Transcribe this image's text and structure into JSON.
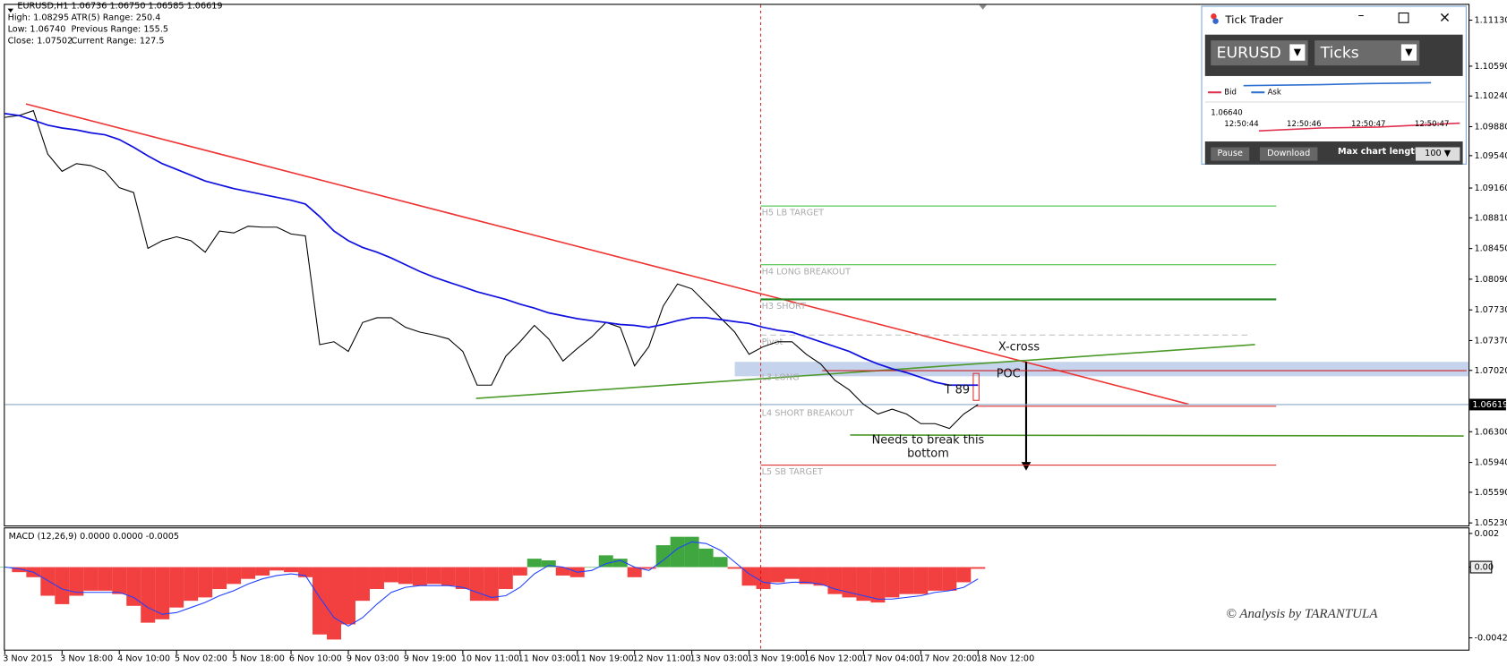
{
  "info": [
    "EURUSD,H1  1.06736 1.06750 1.06585 1.06619",
    "High: 1.08295",
    "ATR(5) Range: 250.4",
    "Low: 1.06740",
    "Previous Range: 155.5",
    "Close: 1.07502",
    "Current Range: 127.5"
  ],
  "tick_trader": {
    "title": "Tick Trader",
    "symbol": "EURUSD",
    "mode": "Ticks",
    "legend": [
      "Bid",
      "Ask"
    ],
    "price": "1.06640",
    "times": [
      "12:50:44",
      "12:50:46",
      "12:50:47",
      "12:50:47"
    ],
    "buttons": [
      "Pause",
      "Download"
    ],
    "length_label": "Max chart length:",
    "length": "100"
  },
  "chart_data": [
    {
      "type": "line",
      "categories": [
        "3 Nov 2015",
        null,
        null,
        null,
        "3 Nov 18:00",
        null,
        null,
        null,
        "4 Nov 10:00",
        null,
        null,
        null,
        "5 Nov 02:00",
        null,
        null,
        null,
        "5 Nov 18:00",
        null,
        null,
        null,
        "6 Nov 10:00",
        null,
        null,
        null,
        "9 Nov 03:00",
        null,
        null,
        null,
        "9 Nov 19:00",
        null,
        null,
        null,
        "10 Nov 11:00",
        null,
        null,
        null,
        "11 Nov 03:00",
        null,
        null,
        null,
        "11 Nov 19:00",
        null,
        null,
        null,
        "12 Nov 11:00",
        null,
        null,
        null,
        "13 Nov 03:00",
        null,
        null,
        null,
        "13 Nov 19:00",
        null,
        null,
        null,
        "16 Nov 12:00",
        null,
        null,
        null,
        "17 Nov 04:00",
        null,
        null,
        null,
        "17 Nov 20:00",
        null,
        null,
        null,
        "18 Nov 12:00"
      ],
      "series": [
        {
          "color": "#000000",
          "values": [
            1.09989,
            1.10011,
            1.10068,
            1.09559,
            1.09356,
            1.09446,
            1.09424,
            1.09356,
            1.09164,
            1.09107,
            1.08452,
            1.08542,
            1.08588,
            1.08542,
            1.08407,
            1.08655,
            1.08633,
            1.08712,
            1.08701,
            1.08701,
            1.08621,
            1.08599,
            1.07322,
            1.07356,
            1.07243,
            1.07582,
            1.07638,
            1.07638,
            1.07525,
            1.07469,
            1.07435,
            1.0739,
            1.07243,
            1.06847,
            1.06847,
            1.07186,
            1.07356,
            1.07548,
            1.0739,
            1.0713,
            1.07277,
            1.07412,
            1.07582,
            1.07525,
            1.07073,
            1.07299,
            1.07774,
            1.08034,
            1.07977,
            1.07808,
            1.07638,
            1.07469,
            1.07209,
            1.07299,
            1.07356,
            1.07356,
            1.07209,
            1.07096,
            1.06904,
            1.06791,
            1.06621,
            1.06508,
            1.06565,
            1.06508,
            1.06395,
            1.06395,
            1.06339,
            1.06508,
            1.06619
          ]
        },
        {
          "color": "#1010e0",
          "values": [
            1.10034,
            1.10011,
            1.09955,
            1.09898,
            1.09864,
            1.09842,
            1.09808,
            1.09785,
            1.09729,
            1.09638,
            1.09537,
            1.09446,
            1.09379,
            1.09311,
            1.09243,
            1.09198,
            1.09153,
            1.09119,
            1.09085,
            1.09051,
            1.09017,
            1.08972,
            1.08825,
            1.08655,
            1.08542,
            1.08463,
            1.08407,
            1.08339,
            1.0826,
            1.08181,
            1.08113,
            1.08056,
            1.08,
            1.07943,
            1.07898,
            1.07853,
            1.07797,
            1.07751,
            1.07695,
            1.07661,
            1.07627,
            1.07604,
            1.07582,
            1.07559,
            1.07548,
            1.07525,
            1.07559,
            1.07604,
            1.07638,
            1.07638,
            1.07616,
            1.07593,
            1.07571,
            1.07525,
            1.07491,
            1.07469,
            1.07412,
            1.07356,
            1.07299,
            1.07243,
            1.07164,
            1.07096,
            1.07039,
            1.06994,
            1.06938,
            1.06881,
            1.06847,
            1.06847,
            1.06847
          ]
        }
      ],
      "ylim": [
        1.052,
        1.1131
      ],
      "yticks": [
        {
          "value": 1.1113,
          "label": "1.11130"
        },
        {
          "value": 1.1059,
          "label": "1.10590"
        },
        {
          "value": 1.1024,
          "label": "1.10240"
        },
        {
          "value": 1.0988,
          "label": "1.09880"
        },
        {
          "value": 1.0954,
          "label": "1.09540"
        },
        {
          "value": 1.0916,
          "label": "1.09160"
        },
        {
          "value": 1.0881,
          "label": "1.08810"
        },
        {
          "value": 1.0845,
          "label": "1.08450"
        },
        {
          "value": 1.0809,
          "label": "1.08090"
        },
        {
          "value": 1.0773,
          "label": "1.07730"
        },
        {
          "value": 1.0737,
          "label": "1.07370"
        },
        {
          "value": 1.0702,
          "label": "1.07020"
        },
        {
          "value": 1.063,
          "label": "1.06300"
        },
        {
          "value": 1.0594,
          "label": "1.05940"
        },
        {
          "value": 1.0559,
          "label": "1.05590"
        },
        {
          "value": 1.0523,
          "label": "1.05230"
        }
      ],
      "current_price": 1.06619,
      "levels": [
        {
          "label": "H5 LB TARGET",
          "value": 1.08949,
          "color": "#33bb33"
        },
        {
          "label": "H4 LONG BREAKOUT",
          "value": 1.0826,
          "color": "#33bb33"
        },
        {
          "label": "H3 SHORT",
          "value": 1.07853,
          "color": "#228822"
        },
        {
          "label": "Pivot",
          "value": 1.07435,
          "color": "#bbbbbb"
        },
        {
          "label": "L3 LONG",
          "value": 1.07017,
          "color": "#cc2222"
        },
        {
          "label": "L4 SHORT BREAKOUT",
          "value": 1.06599,
          "color": "#dd3333"
        },
        {
          "label": "L5 SB TARGET",
          "value": 1.05909,
          "color": "#dd3333"
        }
      ],
      "annotations": [
        "X-cross",
        "POC",
        "T 89",
        "Needs to break this bottom",
        "© Analysis by TARANTULA"
      ]
    },
    {
      "type": "bar",
      "title": "MACD (12,26,9) 0.0000 0.0000 -0.0005",
      "series": [
        {
          "color": "#ee0000",
          "positive_color": "#008800",
          "values": [
            0,
            -0.0003,
            -0.0006,
            -0.0017,
            -0.0022,
            -0.0017,
            -0.0014,
            -0.0014,
            -0.0016,
            -0.0023,
            -0.0033,
            -0.0031,
            -0.0024,
            -0.002,
            -0.0018,
            -0.0013,
            -0.001,
            -0.0007,
            -0.0005,
            -0.0002,
            -0.0003,
            -0.0006,
            -0.004,
            -0.0043,
            -0.0034,
            -0.002,
            -0.0013,
            -0.0009,
            -0.001,
            -0.0011,
            -0.001,
            -0.0011,
            -0.0013,
            -0.002,
            -0.002,
            -0.0013,
            -0.0005,
            0.0005,
            0.0004,
            -0.0005,
            -0.0006,
            0,
            0.0007,
            0.0005,
            -0.0006,
            -0.0001,
            0.0013,
            0.0018,
            0.0018,
            0.0011,
            0.0006,
            -0.0001,
            -0.0011,
            -0.0013,
            -0.0009,
            -0.0007,
            -0.001,
            -0.0011,
            -0.0016,
            -0.0018,
            -0.002,
            -0.0021,
            -0.0018,
            -0.0016,
            -0.0016,
            -0.0014,
            -0.0014,
            -0.0009,
            -0.0001
          ]
        },
        {
          "type": "line",
          "color": "#2040ff",
          "values": [
            0,
            -0.0001,
            -0.0003,
            -0.0008,
            -0.0013,
            -0.0015,
            -0.0015,
            -0.0015,
            -0.0015,
            -0.0018,
            -0.0024,
            -0.0028,
            -0.0027,
            -0.0024,
            -0.0021,
            -0.0017,
            -0.0014,
            -0.001,
            -0.0007,
            -0.0005,
            -0.0004,
            -0.0005,
            -0.0018,
            -0.003,
            -0.0035,
            -0.003,
            -0.0022,
            -0.0015,
            -0.0012,
            -0.0011,
            -0.0011,
            -0.0011,
            -0.0012,
            -0.0015,
            -0.0018,
            -0.0017,
            -0.0012,
            -0.0004,
            0.0001,
            0,
            -0.0003,
            -0.0002,
            0.0002,
            0.0004,
            0,
            -0.0002,
            0.0004,
            0.0011,
            0.0015,
            0.0014,
            0.001,
            0.0003,
            -0.0004,
            -0.0009,
            -0.001,
            -0.0009,
            -0.0009,
            -0.001,
            -0.0013,
            -0.0015,
            -0.0017,
            -0.0019,
            -0.0019,
            -0.0018,
            -0.0017,
            -0.0015,
            -0.0014,
            -0.0012,
            -0.0007
          ]
        }
      ],
      "ylim": [
        -0.0049,
        0.0023
      ],
      "yticks": [
        0.002,
        {
          "value": 0,
          "label": "0.00"
        },
        -0.0042
      ]
    }
  ]
}
